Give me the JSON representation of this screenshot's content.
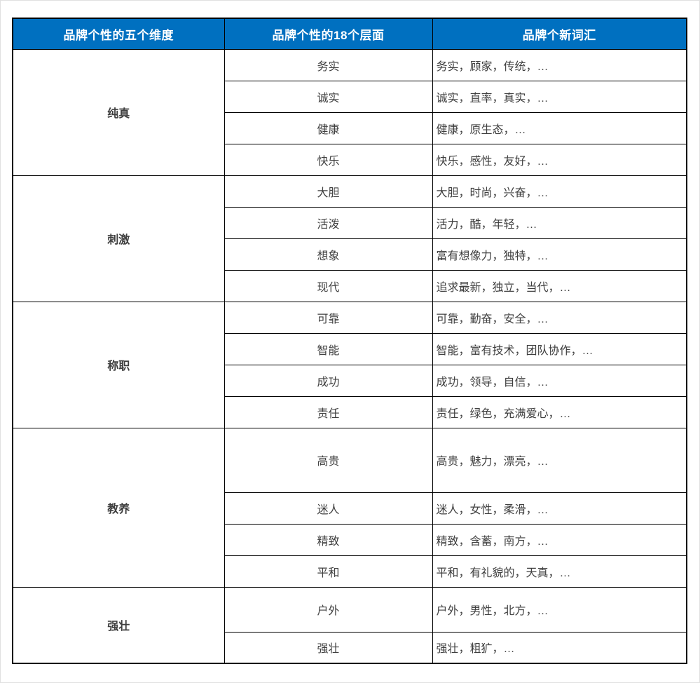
{
  "table": {
    "header": {
      "bg_color": "#0070c0",
      "text_color": "#ffffff",
      "columns": [
        "品牌个性的五个维度",
        "品牌个性的18个层面",
        "品牌个新词汇"
      ]
    },
    "default_row_height": 45,
    "groups": [
      {
        "dimension": "纯真",
        "rows": [
          {
            "facet": "务实",
            "words": "务实，顾家，传统，…"
          },
          {
            "facet": "诚实",
            "words": "诚实，直率，真实，…"
          },
          {
            "facet": "健康",
            "words": "健康，原生态，…"
          },
          {
            "facet": "快乐",
            "words": "快乐，感性，友好，…"
          }
        ]
      },
      {
        "dimension": "刺激",
        "rows": [
          {
            "facet": "大胆",
            "words": "大胆，时尚，兴奋，…"
          },
          {
            "facet": "活泼",
            "words": "活力，酷，年轻，…"
          },
          {
            "facet": "想象",
            "words": "富有想像力，独特，…"
          },
          {
            "facet": "现代",
            "words": "追求最新，独立，当代，…"
          }
        ]
      },
      {
        "dimension": "称职",
        "rows": [
          {
            "facet": "可靠",
            "words": "可靠，勤奋，安全，…"
          },
          {
            "facet": "智能",
            "words": "智能，富有技术，团队协作，…"
          },
          {
            "facet": "成功",
            "words": "成功，领导，自信，…"
          },
          {
            "facet": "责任",
            "words": "责任，绿色，充满爱心，…"
          }
        ]
      },
      {
        "dimension": "教养",
        "rows": [
          {
            "facet": "高贵",
            "words": "高贵，魅力，漂亮，…",
            "height": 92
          },
          {
            "facet": "迷人",
            "words": "迷人，女性，柔滑，…"
          },
          {
            "facet": "精致",
            "words": "精致，含蓄，南方，…"
          },
          {
            "facet": "平和",
            "words": "平和，有礼貌的，天真，…"
          }
        ]
      },
      {
        "dimension": "强壮",
        "rows": [
          {
            "facet": "户外",
            "words": "户外，男性，北方，…",
            "height": 64
          },
          {
            "facet": "强壮",
            "words": "强壮，粗犷，…"
          }
        ]
      }
    ]
  }
}
